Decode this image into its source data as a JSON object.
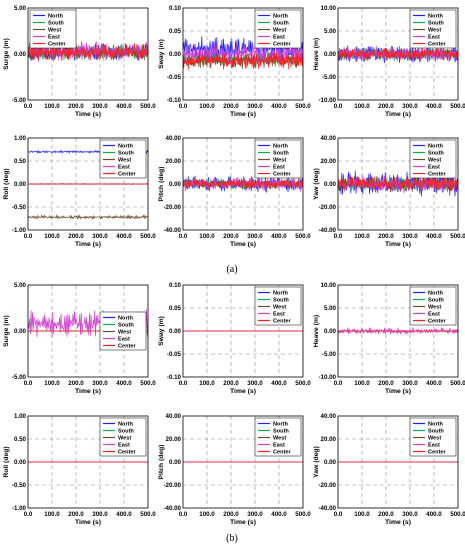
{
  "captions": {
    "a": "(a)",
    "b": "(b)"
  },
  "legend_entries": [
    "North",
    "South",
    "West",
    "East",
    "Center"
  ],
  "series_colors": {
    "North": "#2020ff",
    "South": "#00b050",
    "West": "#6b4f2a",
    "East": "#d040d0",
    "Center": "#ff2020"
  },
  "chart_data": [
    {
      "id": "a-surge",
      "type": "line",
      "group": "a",
      "xlabel": "Time (s)",
      "ylabel": "Surge (m)",
      "xlim": [
        0,
        500
      ],
      "ylim": [
        -5,
        5
      ],
      "xticks": [
        "0.0",
        "100.0",
        "200.0",
        "300.0",
        "400.0",
        "500.0"
      ],
      "yticks": [
        "-5.00",
        "0.00",
        "5.00"
      ],
      "yticks_values": [
        -5,
        0,
        5
      ],
      "grid": true,
      "legend_position": "top-left",
      "series": [
        {
          "name": "North",
          "mean": 0.2,
          "amplitude": 1.0
        },
        {
          "name": "South",
          "mean": 0.2,
          "amplitude": 1.0
        },
        {
          "name": "West",
          "mean": 0.2,
          "amplitude": 1.0
        },
        {
          "name": "East",
          "mean": 0.3,
          "amplitude": 1.2
        },
        {
          "name": "Center",
          "mean": 0.2,
          "amplitude": 1.0
        }
      ]
    },
    {
      "id": "a-sway",
      "type": "line",
      "group": "a",
      "xlabel": "Time (s)",
      "ylabel": "Sway (m)",
      "xlim": [
        0,
        500
      ],
      "ylim": [
        -0.1,
        0.1
      ],
      "xticks": [
        "0.0",
        "100.0",
        "200.0",
        "300.0",
        "400.0",
        "500.0"
      ],
      "yticks": [
        "-0.10",
        "-0.05",
        "0.00",
        "0.05",
        "0.10"
      ],
      "yticks_values": [
        -0.1,
        -0.05,
        0,
        0.05,
        0.1
      ],
      "grid": true,
      "legend_position": "top-right",
      "series": [
        {
          "name": "North",
          "mean": 0.01,
          "amplitude": 0.03
        },
        {
          "name": "South",
          "mean": -0.01,
          "amplitude": 0.015
        },
        {
          "name": "West",
          "mean": -0.015,
          "amplitude": 0.02
        },
        {
          "name": "East",
          "mean": 0.0,
          "amplitude": 0.025
        },
        {
          "name": "Center",
          "mean": -0.015,
          "amplitude": 0.02
        }
      ]
    },
    {
      "id": "a-heave",
      "type": "line",
      "group": "a",
      "xlabel": "Time (s)",
      "ylabel": "Heave (m)",
      "xlim": [
        0,
        500
      ],
      "ylim": [
        -10,
        10
      ],
      "xticks": [
        "0.0",
        "100.0",
        "200.0",
        "300.0",
        "400.0",
        "500.0"
      ],
      "yticks": [
        "-10.00",
        "-5.00",
        "0.00",
        "5.00",
        "10.00"
      ],
      "yticks_values": [
        -10,
        -5,
        0,
        5,
        10
      ],
      "grid": true,
      "legend_position": "top-right",
      "series": [
        {
          "name": "North",
          "mean": 0.0,
          "amplitude": 2.0
        },
        {
          "name": "South",
          "mean": 0.0,
          "amplitude": 1.5
        },
        {
          "name": "West",
          "mean": 0.0,
          "amplitude": 1.5
        },
        {
          "name": "East",
          "mean": 0.0,
          "amplitude": 2.0
        },
        {
          "name": "Center",
          "mean": 0.0,
          "amplitude": 1.5
        }
      ]
    },
    {
      "id": "a-roll",
      "type": "line",
      "group": "a",
      "xlabel": "Time (s)",
      "ylabel": "Roll (deg)",
      "xlim": [
        0,
        500
      ],
      "ylim": [
        -1,
        1
      ],
      "xticks": [
        "0.0",
        "100.0",
        "200.0",
        "300.0",
        "400.0",
        "500.0"
      ],
      "yticks": [
        "-1.00",
        "-0.50",
        "0.00",
        "0.50",
        "1.00"
      ],
      "yticks_values": [
        -1,
        -0.5,
        0,
        0.5,
        1
      ],
      "grid": true,
      "legend_position": "top-right",
      "series": [
        {
          "name": "North",
          "mean": 0.7,
          "amplitude": 0.03
        },
        {
          "name": "South",
          "mean": 0.0,
          "amplitude": 0.01
        },
        {
          "name": "West",
          "mean": -0.72,
          "amplitude": 0.04
        },
        {
          "name": "East",
          "mean": 0.0,
          "amplitude": 0.01
        },
        {
          "name": "Center",
          "mean": 0.0,
          "amplitude": 0.01
        }
      ]
    },
    {
      "id": "a-pitch",
      "type": "line",
      "group": "a",
      "xlabel": "Time (s)",
      "ylabel": "Pitch (deg)",
      "xlim": [
        0,
        500
      ],
      "ylim": [
        -40,
        40
      ],
      "xticks": [
        "0.0",
        "100.0",
        "200.0",
        "300.0",
        "400.0",
        "500.0"
      ],
      "yticks": [
        "-40.00",
        "-20.00",
        "0.00",
        "20.00",
        "40.00"
      ],
      "yticks_values": [
        -40,
        -20,
        0,
        20,
        40
      ],
      "grid": true,
      "legend_position": "top-right",
      "series": [
        {
          "name": "North",
          "mean": 0.0,
          "amplitude": 8.0
        },
        {
          "name": "South",
          "mean": 0.0,
          "amplitude": 5.0
        },
        {
          "name": "West",
          "mean": 0.0,
          "amplitude": 5.0
        },
        {
          "name": "East",
          "mean": 0.0,
          "amplitude": 7.0
        },
        {
          "name": "Center",
          "mean": 0.0,
          "amplitude": 5.0
        }
      ]
    },
    {
      "id": "a-yaw",
      "type": "line",
      "group": "a",
      "xlabel": "Time (s)",
      "ylabel": "Yaw (deg)",
      "xlim": [
        0,
        500
      ],
      "ylim": [
        -40,
        40
      ],
      "xticks": [
        "0.0",
        "100.0",
        "200.0",
        "300.0",
        "400.0",
        "500.0"
      ],
      "yticks": [
        "-40.00",
        "-20.00",
        "0.00",
        "20.00",
        "40.00"
      ],
      "yticks_values": [
        -40,
        -20,
        0,
        20,
        40
      ],
      "grid": true,
      "legend_position": "top-right",
      "series": [
        {
          "name": "North",
          "mean": 0.0,
          "amplitude": 12.0
        },
        {
          "name": "South",
          "mean": 0.0,
          "amplitude": 6.0
        },
        {
          "name": "West",
          "mean": 0.0,
          "amplitude": 8.0
        },
        {
          "name": "East",
          "mean": 0.0,
          "amplitude": 8.0
        },
        {
          "name": "Center",
          "mean": 0.0,
          "amplitude": 7.0
        }
      ]
    },
    {
      "id": "b-surge",
      "type": "line",
      "group": "b",
      "xlabel": "Time (s)",
      "ylabel": "Surge (m)",
      "xlim": [
        0,
        500
      ],
      "ylim": [
        -5,
        5
      ],
      "xticks": [
        "0.0",
        "100.0",
        "200.0",
        "300.0",
        "400.0",
        "500.0"
      ],
      "yticks": [
        "-5.00",
        "0.00",
        "5.00"
      ],
      "yticks_values": [
        -5,
        0,
        5
      ],
      "grid": true,
      "legend_position": "right",
      "series": [
        {
          "name": "North",
          "mean": 0.0,
          "amplitude": 0.0
        },
        {
          "name": "South",
          "mean": 0.0,
          "amplitude": 0.0
        },
        {
          "name": "West",
          "mean": 0.0,
          "amplitude": 0.0
        },
        {
          "name": "East",
          "mean": 0.8,
          "amplitude": 1.6
        },
        {
          "name": "Center",
          "mean": 0.0,
          "amplitude": 0.0
        }
      ]
    },
    {
      "id": "b-sway",
      "type": "line",
      "group": "b",
      "xlabel": "Time (s)",
      "ylabel": "Sway (m)",
      "xlim": [
        0,
        500
      ],
      "ylim": [
        -0.1,
        0.1
      ],
      "xticks": [
        "0.0",
        "100.0",
        "200.0",
        "300.0",
        "400.0",
        "500.0"
      ],
      "yticks": [
        "-0.10",
        "-0.05",
        "0.00",
        "0.05",
        "0.10"
      ],
      "yticks_values": [
        -0.1,
        -0.05,
        0,
        0.05,
        0.1
      ],
      "grid": true,
      "legend_position": "top-right",
      "series": [
        {
          "name": "North",
          "mean": 0.0,
          "amplitude": 0.0
        },
        {
          "name": "South",
          "mean": 0.0,
          "amplitude": 0.0
        },
        {
          "name": "West",
          "mean": 0.0,
          "amplitude": 0.0
        },
        {
          "name": "East",
          "mean": 0.0,
          "amplitude": 0.0
        },
        {
          "name": "Center",
          "mean": 0.0,
          "amplitude": 0.0
        }
      ]
    },
    {
      "id": "b-heave",
      "type": "line",
      "group": "b",
      "xlabel": "Time (s)",
      "ylabel": "Heave (m)",
      "xlim": [
        0,
        500
      ],
      "ylim": [
        -10,
        10
      ],
      "xticks": [
        "0.0",
        "100.0",
        "200.0",
        "300.0",
        "400.0",
        "500.0"
      ],
      "yticks": [
        "-10.00",
        "-5.00",
        "0.00",
        "5.00",
        "10.00"
      ],
      "yticks_values": [
        -10,
        -5,
        0,
        5,
        10
      ],
      "grid": true,
      "legend_position": "top-right",
      "series": [
        {
          "name": "North",
          "mean": 0.0,
          "amplitude": 0.0
        },
        {
          "name": "South",
          "mean": 0.0,
          "amplitude": 0.0
        },
        {
          "name": "West",
          "mean": 0.0,
          "amplitude": 0.0
        },
        {
          "name": "East",
          "mean": 0.0,
          "amplitude": 0.8
        },
        {
          "name": "Center",
          "mean": 0.0,
          "amplitude": 0.0
        }
      ]
    },
    {
      "id": "b-roll",
      "type": "line",
      "group": "b",
      "xlabel": "Time (s)",
      "ylabel": "Roll (deg)",
      "xlim": [
        0,
        500
      ],
      "ylim": [
        -1,
        1
      ],
      "xticks": [
        "0.0",
        "100.0",
        "200.0",
        "300.0",
        "400.0",
        "500.0"
      ],
      "yticks": [
        "-1.00",
        "-0.50",
        "0.00",
        "0.50",
        "1.00"
      ],
      "yticks_values": [
        -1,
        -0.5,
        0,
        0.5,
        1
      ],
      "grid": true,
      "legend_position": "top-right",
      "series": [
        {
          "name": "North",
          "mean": 0.0,
          "amplitude": 0.0
        },
        {
          "name": "South",
          "mean": 0.0,
          "amplitude": 0.0
        },
        {
          "name": "West",
          "mean": 0.0,
          "amplitude": 0.0
        },
        {
          "name": "East",
          "mean": 0.0,
          "amplitude": 0.0
        },
        {
          "name": "Center",
          "mean": 0.0,
          "amplitude": 0.0
        }
      ]
    },
    {
      "id": "b-pitch",
      "type": "line",
      "group": "b",
      "xlabel": "Time (s)",
      "ylabel": "Pitch (deg)",
      "xlim": [
        0,
        500
      ],
      "ylim": [
        -40,
        40
      ],
      "xticks": [
        "0.0",
        "100.0",
        "200.0",
        "300.0",
        "400.0",
        "500.0"
      ],
      "yticks": [
        "-40.00",
        "-20.00",
        "0.00",
        "20.00",
        "40.00"
      ],
      "yticks_values": [
        -40,
        -20,
        0,
        20,
        40
      ],
      "grid": true,
      "legend_position": "top-right",
      "series": [
        {
          "name": "North",
          "mean": 0.0,
          "amplitude": 0.0
        },
        {
          "name": "South",
          "mean": 0.0,
          "amplitude": 0.0
        },
        {
          "name": "West",
          "mean": 0.0,
          "amplitude": 0.0
        },
        {
          "name": "East",
          "mean": 0.0,
          "amplitude": 0.0
        },
        {
          "name": "Center",
          "mean": 0.0,
          "amplitude": 0.0
        }
      ]
    },
    {
      "id": "b-yaw",
      "type": "line",
      "group": "b",
      "xlabel": "Time (s)",
      "ylabel": "Yaw (deg)",
      "xlim": [
        0,
        500
      ],
      "ylim": [
        -40,
        40
      ],
      "xticks": [
        "0.0",
        "100.0",
        "200.0",
        "300.0",
        "400.0",
        "500.0"
      ],
      "yticks": [
        "-40.00",
        "-20.00",
        "0.00",
        "20.00",
        "40.00"
      ],
      "yticks_values": [
        -40,
        -20,
        0,
        20,
        40
      ],
      "grid": true,
      "legend_position": "top-right",
      "series": [
        {
          "name": "North",
          "mean": 0.0,
          "amplitude": 0.0
        },
        {
          "name": "South",
          "mean": 0.0,
          "amplitude": 0.0
        },
        {
          "name": "West",
          "mean": 0.0,
          "amplitude": 0.0
        },
        {
          "name": "East",
          "mean": 0.0,
          "amplitude": 0.0
        },
        {
          "name": "Center",
          "mean": 0.0,
          "amplitude": 0.0
        }
      ]
    }
  ]
}
